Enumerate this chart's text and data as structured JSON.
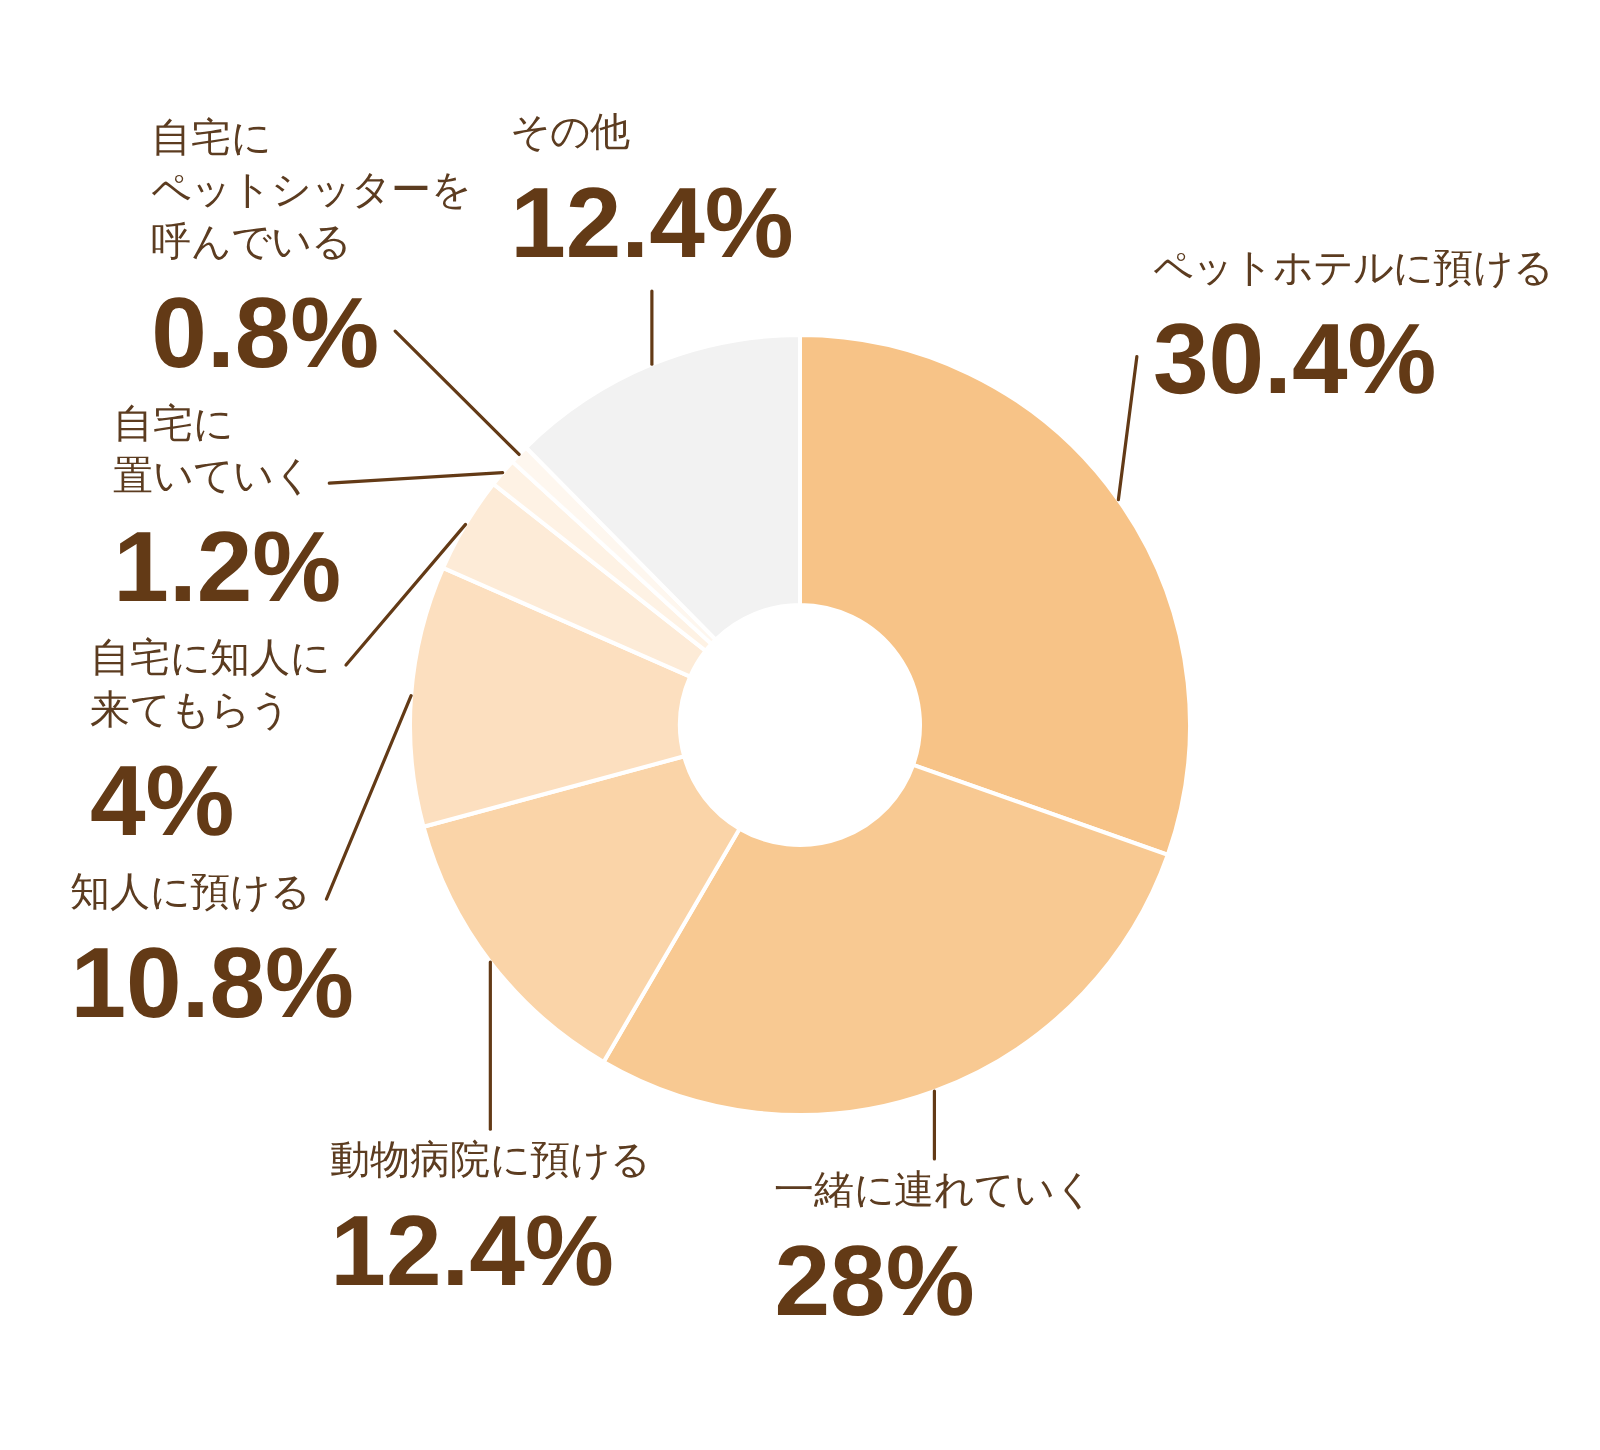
{
  "chart_data": {
    "type": "donut",
    "categories": [
      "ペットホテルに預ける",
      "一緒に連れていく",
      "動物病院に預ける",
      "知人に預ける",
      "自宅に知人に来てもらう",
      "自宅に置いていく",
      "自宅にペットシッターを呼んでいる",
      "その他"
    ],
    "values": [
      30.4,
      28,
      12.4,
      10.8,
      4,
      1.2,
      0.8,
      12.4
    ],
    "value_labels": [
      "30.4%",
      "28%",
      "12.4%",
      "10.8%",
      "4%",
      "1.2%",
      "0.8%",
      "12.4%"
    ],
    "colors": [
      "#f7c387",
      "#f8c992",
      "#fad4a8",
      "#fcdfbf",
      "#fdebd7",
      "#fef2e4",
      "#fef7ef",
      "#f2f2f2"
    ]
  }
}
